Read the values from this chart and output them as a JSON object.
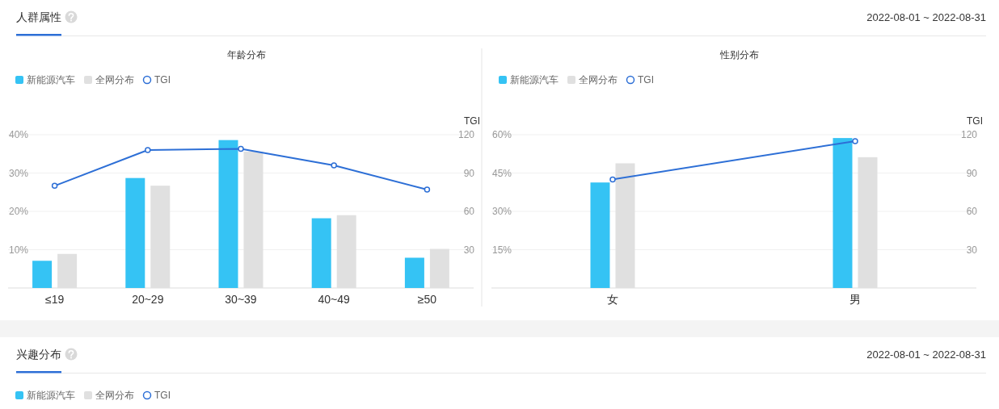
{
  "chart_data": [
    {
      "type": "other",
      "title": "人群属性",
      "annotations": [
        "2022-08-01 ~ 2022-08-31"
      ]
    },
    {
      "type": "bar",
      "title": "年龄分布",
      "categories": [
        "≤19",
        "20~29",
        "30~39",
        "40~49",
        "≥50"
      ],
      "series": [
        {
          "name": "新能源汽车",
          "color": "#35c3f4",
          "values": [
            7.1,
            28.7,
            38.6,
            18.2,
            7.9
          ]
        },
        {
          "name": "全网分布",
          "color": "#e0e0e0",
          "values": [
            8.9,
            26.7,
            35.6,
            19.0,
            10.2
          ]
        },
        {
          "name": "TGI",
          "type": "line",
          "axis": "y2",
          "color": "#2d6fd6",
          "values": [
            80,
            108,
            109,
            96,
            77
          ]
        }
      ],
      "ylim": [
        0,
        40
      ],
      "yticks": [
        {
          "value": 10,
          "label": "10%"
        },
        {
          "value": 20,
          "label": "20%"
        },
        {
          "value": 30,
          "label": "30%"
        },
        {
          "value": 40,
          "label": "40%"
        }
      ],
      "y2lim": [
        0,
        120
      ],
      "y2ticks": [
        30,
        60,
        90,
        120
      ],
      "y2label": "TGI",
      "grid": "y",
      "legend": "top left",
      "marker": "circle"
    },
    {
      "type": "bar",
      "title": "性别分布",
      "categories": [
        "女",
        "男"
      ],
      "series": [
        {
          "name": "新能源汽车",
          "color": "#35c3f4",
          "values": [
            41.3,
            58.7
          ]
        },
        {
          "name": "全网分布",
          "color": "#e0e0e0",
          "values": [
            48.8,
            51.2
          ]
        },
        {
          "name": "TGI",
          "type": "line",
          "axis": "y2",
          "color": "#2d6fd6",
          "values": [
            85,
            115
          ]
        }
      ],
      "ylim": [
        0,
        60
      ],
      "yticks": [
        {
          "value": 15,
          "label": "15%"
        },
        {
          "value": 30,
          "label": "30%"
        },
        {
          "value": 45,
          "label": "45%"
        },
        {
          "value": 60,
          "label": "60%"
        }
      ],
      "y2lim": [
        0,
        120
      ],
      "y2ticks": [
        30,
        60,
        90,
        120
      ],
      "y2label": "TGI",
      "grid": "y",
      "legend": "top left",
      "marker": "circle"
    },
    {
      "type": "other",
      "title": "兴趣分布",
      "annotations": [
        "2022-08-01 ~ 2022-08-31"
      ],
      "series": [
        {
          "name": "新能源汽车",
          "type": "bar",
          "color": "#35c3f4"
        },
        {
          "name": "全网分布",
          "type": "bar",
          "color": "#e0e0e0"
        },
        {
          "name": "TGI",
          "type": "line",
          "color": "#2d6fd6"
        }
      ],
      "legend": "top left"
    }
  ]
}
